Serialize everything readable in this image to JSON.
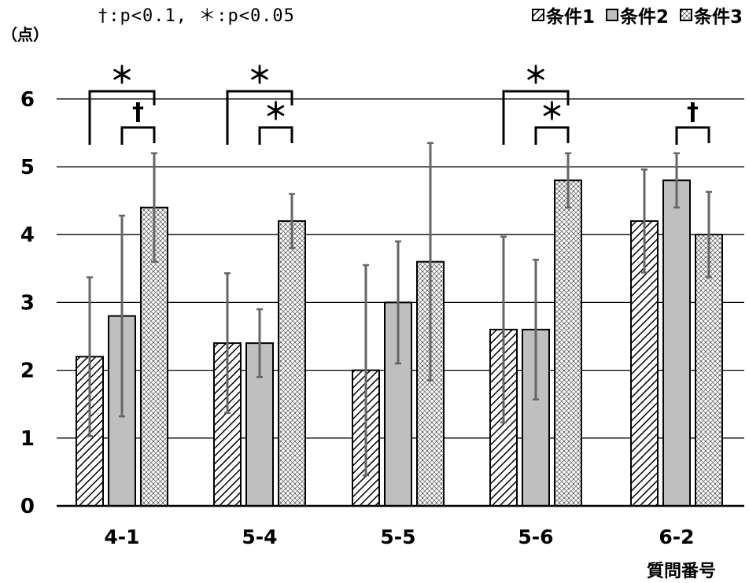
{
  "significance_note": "†:p<0.1, ＊:p<0.05",
  "chart_data": {
    "type": "bar",
    "categories": [
      "4-1",
      "5-4",
      "5-5",
      "5-6",
      "6-2"
    ],
    "series": [
      {
        "name": "条件1",
        "pattern": "diagonal-hatch",
        "values": [
          2.2,
          2.4,
          2.0,
          2.6,
          4.2
        ],
        "err": [
          1.17,
          1.03,
          1.55,
          1.37,
          0.76
        ]
      },
      {
        "name": "条件2",
        "pattern": "solid-gray",
        "values": [
          2.8,
          2.4,
          3.0,
          2.6,
          4.8
        ],
        "err": [
          1.48,
          0.5,
          0.9,
          1.03,
          0.4
        ]
      },
      {
        "name": "条件3",
        "pattern": "crosshatch",
        "values": [
          4.4,
          4.2,
          3.6,
          4.8,
          4.0
        ],
        "err": [
          0.8,
          0.4,
          1.75,
          0.4,
          0.63
        ]
      }
    ],
    "ylabel": "（点）",
    "xlabel": "質問番号",
    "ylim": [
      0,
      6
    ],
    "yticks": [
      "0",
      "1",
      "2",
      "3",
      "4",
      "5",
      "6"
    ],
    "grid": true,
    "legend_position": "top-right",
    "significance": [
      {
        "category": "4-1",
        "from": "条件1",
        "to": "条件3",
        "mark": "＊",
        "level": "outer"
      },
      {
        "category": "4-1",
        "from": "条件2",
        "to": "条件3",
        "mark": "†",
        "level": "inner"
      },
      {
        "category": "5-4",
        "from": "条件1",
        "to": "条件3",
        "mark": "＊",
        "level": "outer"
      },
      {
        "category": "5-4",
        "from": "条件2",
        "to": "条件3",
        "mark": "＊",
        "level": "inner"
      },
      {
        "category": "5-6",
        "from": "条件1",
        "to": "条件3",
        "mark": "＊",
        "level": "outer"
      },
      {
        "category": "5-6",
        "from": "条件2",
        "to": "条件3",
        "mark": "＊",
        "level": "inner"
      },
      {
        "category": "6-2",
        "from": "条件2",
        "to": "条件3",
        "mark": "†",
        "level": "inner"
      }
    ]
  }
}
